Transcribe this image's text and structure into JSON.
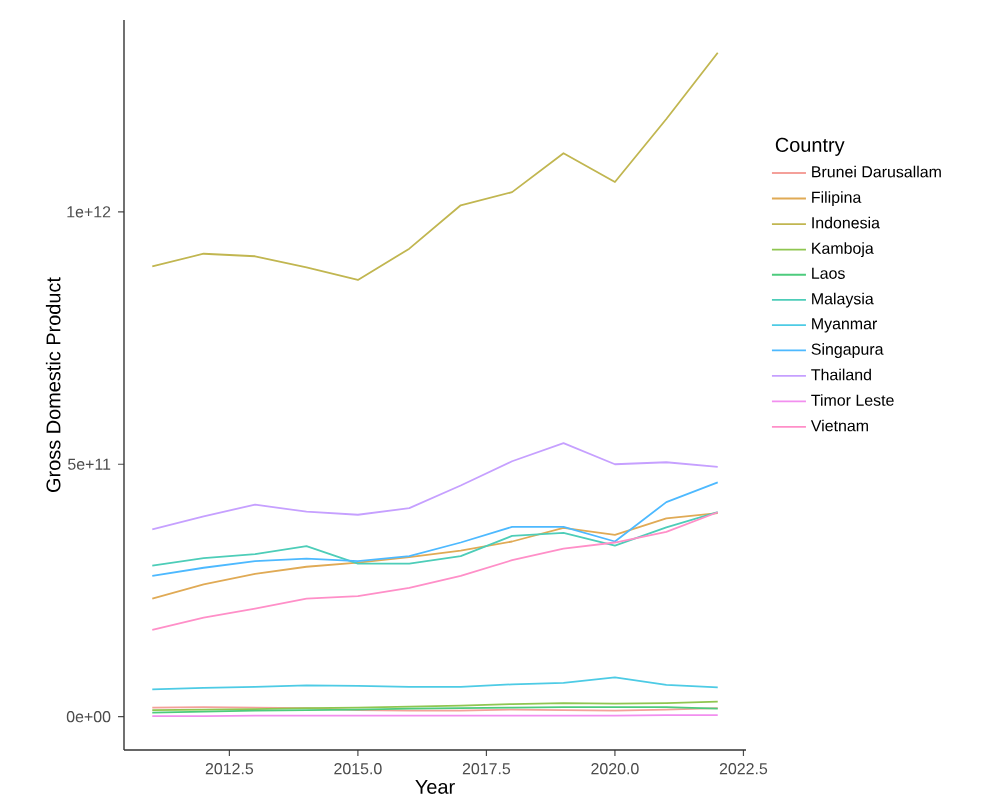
{
  "chart_data": {
    "type": "line",
    "xlabel": "Year",
    "ylabel": "Gross Domestic Product",
    "legend_title": "Country",
    "legend": "right",
    "grid": false,
    "x": [
      2011,
      2012,
      2013,
      2014,
      2015,
      2016,
      2017,
      2018,
      2019,
      2020,
      2021,
      2022
    ],
    "xlim": [
      2010.45,
      2022.55
    ],
    "ylim": [
      -66000000000,
      1380000000000
    ],
    "xticks": [
      2012.5,
      {
        "value": 2015,
        "label": "2015.0"
      },
      2017.5,
      {
        "value": 2020,
        "label": "2020.0"
      },
      2022.5
    ],
    "yticks": [
      {
        "value": 0,
        "label": "0e+00"
      },
      {
        "value": 500000000000,
        "label": "5e+11"
      },
      {
        "value": 1000000000000,
        "label": "1e+12"
      }
    ],
    "series": [
      {
        "name": "Brunei Darusallam",
        "color": "#F4A09A",
        "values": [
          18000000000.0,
          19000000000.0,
          18000000000.0,
          17000000000.0,
          13000000000.0,
          12000000000.0,
          12000000000.0,
          14000000000.0,
          13000000000.0,
          12000000000.0,
          14000000000.0,
          17000000000.0
        ]
      },
      {
        "name": "Filipina",
        "color": "#E0AA55",
        "values": [
          234000000000.0,
          262000000000.0,
          283000000000.0,
          297000000000.0,
          305000000000.0,
          316000000000.0,
          329000000000.0,
          347000000000.0,
          374000000000.0,
          360000000000.0,
          393000000000.0,
          403000000000.0
        ]
      },
      {
        "name": "Indonesia",
        "color": "#C1B650",
        "values": [
          892000000000.0,
          917000000000.0,
          912000000000.0,
          890000000000.0,
          865000000000.0,
          927000000000.0,
          1013000000000.0,
          1039000000000.0,
          1116000000000.0,
          1059000000000.0,
          1184000000000.0,
          1315000000000.0
        ]
      },
      {
        "name": "Kamboja",
        "color": "#8FC650",
        "values": [
          13000000000.0,
          14000000000.0,
          15000000000.0,
          17000000000.0,
          18000000000.0,
          20000000000.0,
          22000000000.0,
          25000000000.0,
          27000000000.0,
          26000000000.0,
          27000000000.0,
          30000000000.0
        ]
      },
      {
        "name": "Laos",
        "color": "#4DCB7D",
        "values": [
          8000000000.0,
          10000000000.0,
          12000000000.0,
          13000000000.0,
          14000000000.0,
          16000000000.0,
          17000000000.0,
          18000000000.0,
          19000000000.0,
          19000000000.0,
          19000000000.0,
          16000000000.0
        ]
      },
      {
        "name": "Malaysia",
        "color": "#4DCDB8",
        "values": [
          299000000000.0,
          314000000000.0,
          322000000000.0,
          338000000000.0,
          303000000000.0,
          303000000000.0,
          318000000000.0,
          358000000000.0,
          364000000000.0,
          339000000000.0,
          375000000000.0,
          405000000000.0
        ]
      },
      {
        "name": "Myanmar",
        "color": "#4DCBE5",
        "values": [
          54000000000.0,
          57000000000.0,
          59000000000.0,
          62000000000.0,
          61000000000.0,
          59000000000.0,
          59000000000.0,
          64000000000.0,
          67000000000.0,
          78000000000.0,
          63000000000.0,
          58000000000.0
        ]
      },
      {
        "name": "Singapura",
        "color": "#4DB9FF",
        "values": [
          279000000000.0,
          295000000000.0,
          308000000000.0,
          313000000000.0,
          308000000000.0,
          318000000000.0,
          345000000000.0,
          376000000000.0,
          376000000000.0,
          347000000000.0,
          425000000000.0,
          464000000000.0
        ]
      },
      {
        "name": "Thailand",
        "color": "#C6A0FF",
        "values": [
          371000000000.0,
          397000000000.0,
          420000000000.0,
          406000000000.0,
          400000000000.0,
          413000000000.0,
          458000000000.0,
          506000000000.0,
          542000000000.0,
          500000000000.0,
          504000000000.0,
          495000000000.0
        ]
      },
      {
        "name": "Timor Leste",
        "color": "#F28FEF",
        "values": [
          1000000000.0,
          1000000000.0,
          2000000000.0,
          2000000000.0,
          2000000000.0,
          2000000000.0,
          2000000000.0,
          2000000000.0,
          2000000000.0,
          2000000000.0,
          3000000000.0,
          3000000000.0
        ]
      },
      {
        "name": "Vietnam",
        "color": "#FF8FC8",
        "values": [
          172000000000.0,
          196000000000.0,
          214000000000.0,
          234000000000.0,
          239000000000.0,
          255000000000.0,
          279000000000.0,
          310000000000.0,
          333000000000.0,
          345000000000.0,
          366000000000.0,
          405000000000.0
        ]
      }
    ]
  }
}
